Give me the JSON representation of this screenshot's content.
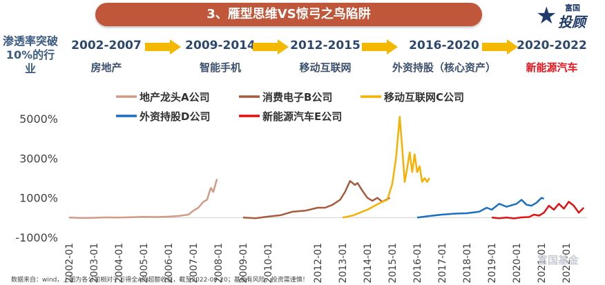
{
  "header": {
    "title": "3、雁型思维VS惊弓之鸟陷阱"
  },
  "logo": {
    "small_text": "富国",
    "big_text": "投顾",
    "star": "★"
  },
  "timeline": {
    "row_label": "渗透率突破10%的行业",
    "periods": [
      {
        "years": "2002-2007",
        "stage": "房地产",
        "highlight": false
      },
      {
        "years": "2009-2014",
        "stage": "智能手机",
        "highlight": false
      },
      {
        "years": "2012-2015",
        "stage": "移动互联网",
        "highlight": false
      },
      {
        "years": "2016-2020",
        "stage": "外资持股（核心资产）",
        "highlight": false
      },
      {
        "years": "2020-2022",
        "stage": "新能源汽车",
        "highlight": true
      }
    ],
    "arrow_color": "#f5b800"
  },
  "chart_data": {
    "type": "line",
    "title": "",
    "xlabel": "",
    "ylabel": "",
    "ylim": [
      -1000,
      5000
    ],
    "yticks": [
      "5000%",
      "3000%",
      "1000%",
      "-1000%"
    ],
    "ytick_values": [
      5000,
      3000,
      1000,
      -1000
    ],
    "x_tick_labels": [
      "2002-01",
      "2003-01",
      "2004-01",
      "2005-01",
      "2006-01",
      "2007-01",
      "2008-01",
      "2009-01",
      "2010-01",
      "2012-01",
      "2013-01",
      "2014-01",
      "2015-01",
      "2016-01",
      "2017-01",
      "2018-01",
      "2019-01",
      "2020-01",
      "2021-01",
      "2022-01"
    ],
    "x_tick_years": [
      2002,
      2003,
      2004,
      2005,
      2006,
      2007,
      2008,
      2009,
      2010,
      2012,
      2013,
      2014,
      2015,
      2016,
      2017,
      2018,
      2019,
      2020,
      2021,
      2022
    ],
    "series": [
      {
        "name": "地产龙头A公司",
        "color": "#d09a86",
        "x": [
          2002.0,
          2002.5,
          2003.0,
          2003.5,
          2004.0,
          2004.5,
          2005.0,
          2005.5,
          2006.0,
          2006.4,
          2006.8,
          2007.0,
          2007.2,
          2007.4,
          2007.55,
          2007.7,
          2007.8,
          2007.95
        ],
        "y": [
          0,
          -20,
          -10,
          10,
          0,
          20,
          40,
          30,
          50,
          80,
          150,
          350,
          500,
          800,
          900,
          1500,
          1300,
          1950
        ]
      },
      {
        "name": "消费电子B公司",
        "color": "#a55a3c",
        "x": [
          2009.0,
          2009.5,
          2010.0,
          2010.5,
          2011.0,
          2011.5,
          2012.0,
          2012.3,
          2012.6,
          2012.9,
          2013.1,
          2013.3,
          2013.5,
          2013.6,
          2013.8,
          2014.0,
          2014.2,
          2014.4,
          2014.6,
          2014.9
        ],
        "y": [
          0,
          -30,
          50,
          120,
          300,
          350,
          500,
          500,
          650,
          900,
          1300,
          1850,
          1650,
          1750,
          1350,
          1000,
          850,
          1000,
          800,
          1000
        ]
      },
      {
        "name": "移动互联网C公司",
        "color": "#f5b000",
        "x": [
          2013.0,
          2013.4,
          2013.8,
          2014.0,
          2014.3,
          2014.6,
          2014.8,
          2015.0,
          2015.15,
          2015.3,
          2015.4,
          2015.5,
          2015.6,
          2015.7,
          2015.8,
          2015.9,
          2016.0,
          2016.1,
          2016.2,
          2016.3,
          2016.4,
          2016.5
        ],
        "y": [
          0,
          100,
          300,
          400,
          600,
          800,
          900,
          1700,
          3000,
          5100,
          3500,
          1800,
          2500,
          3300,
          2300,
          3200,
          2300,
          2600,
          1800,
          2000,
          1800,
          2000
        ]
      },
      {
        "name": "外资持股D公司",
        "color": "#1a6fc0",
        "x": [
          2016.0,
          2016.5,
          2017.0,
          2017.5,
          2018.0,
          2018.5,
          2018.8,
          2019.0,
          2019.3,
          2019.6,
          2020.0,
          2020.2,
          2020.4,
          2020.6,
          2020.8,
          2021.0,
          2021.1
        ],
        "y": [
          0,
          80,
          150,
          200,
          220,
          300,
          500,
          400,
          700,
          550,
          700,
          900,
          650,
          600,
          750,
          1000,
          950
        ]
      },
      {
        "name": "新能源汽车E公司",
        "color": "#e01010",
        "x": [
          2019.0,
          2019.3,
          2019.6,
          2019.9,
          2020.2,
          2020.5,
          2020.7,
          2020.9,
          2021.1,
          2021.3,
          2021.5,
          2021.7,
          2021.9,
          2022.1,
          2022.3,
          2022.5,
          2022.7
        ],
        "y": [
          0,
          -30,
          0,
          -40,
          10,
          30,
          150,
          100,
          250,
          600,
          400,
          700,
          450,
          800,
          600,
          250,
          500
        ]
      }
    ]
  },
  "footer": {
    "note": "数据来自：wind，上图为各公司相对于万得全A的超额收益，截至2022-09-20；基金有风险，投资需谨慎！"
  },
  "watermark": {
    "text": "富国基金"
  }
}
